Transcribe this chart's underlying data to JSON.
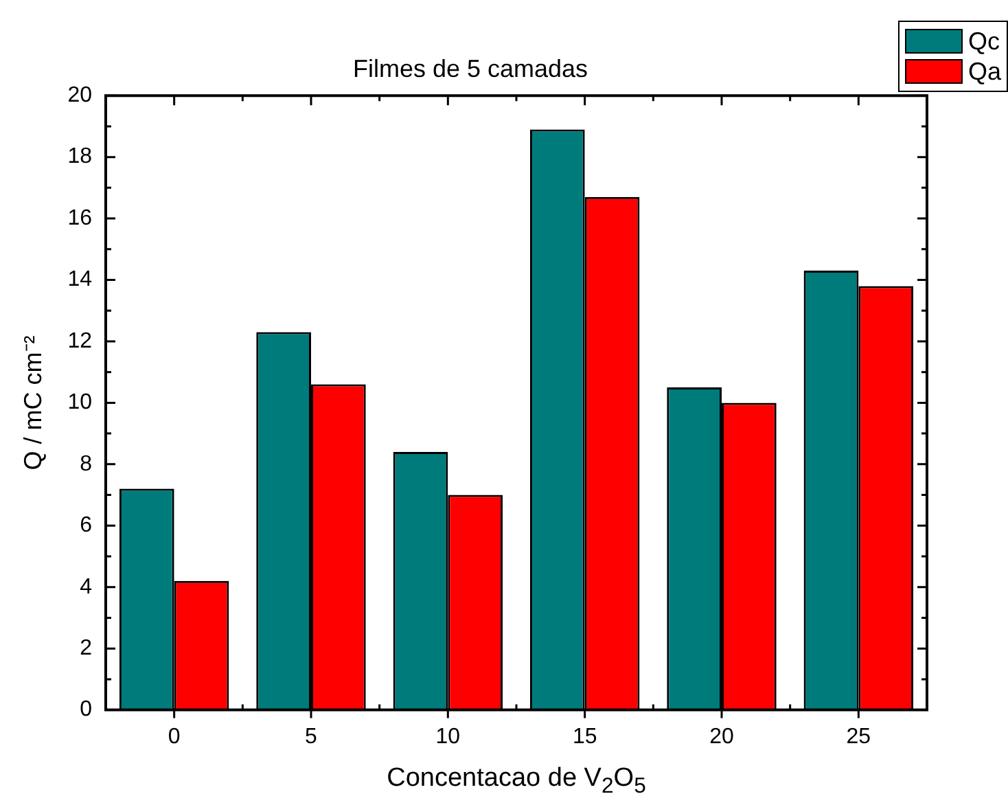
{
  "chart_data": {
    "type": "bar",
    "title": "Filmes de 5 camadas",
    "xlabel": "Concentacao de V$_{2}$O$_{5}$",
    "ylabel": "Q / mC cm⁻²",
    "categories": [
      "0",
      "5",
      "10",
      "15",
      "20",
      "25"
    ],
    "series": [
      {
        "name": "Qc",
        "color": "#007b7b",
        "values": [
          7.2,
          12.3,
          8.4,
          18.9,
          10.5,
          14.3
        ]
      },
      {
        "name": "Qa",
        "color": "#ff0000",
        "values": [
          4.2,
          10.6,
          7.0,
          16.7,
          10.0,
          13.8
        ]
      }
    ],
    "ylim": [
      0,
      20
    ],
    "yticks": [
      0,
      2,
      4,
      6,
      8,
      10,
      12,
      14,
      16,
      18,
      20
    ],
    "grid": false,
    "legend": "top right"
  }
}
